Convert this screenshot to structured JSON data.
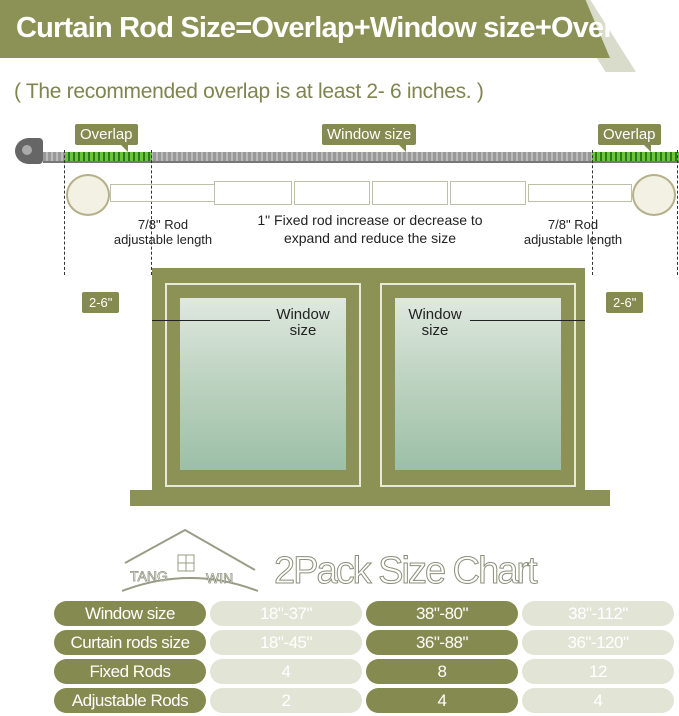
{
  "title": "Curtain Rod Size=Overlap+Window size+Overlap",
  "subtitle": "( The recommended overlap is at least 2- 6 inches. )",
  "diagram": {
    "overlap_left": "Overlap",
    "window_size": "Window size",
    "overlap_right": "Overlap",
    "adjustable_left": [
      "7/8\" Rod",
      "adjustable length"
    ],
    "fixed_rod": [
      "1\" Fixed rod  increase or decrease to",
      "expand and reduce the size"
    ],
    "adjustable_right": [
      "7/8\" Rod",
      "adjustable length"
    ],
    "side_left": "2-6\"",
    "side_right": "2-6\"",
    "window_left": [
      "Window",
      "size"
    ],
    "window_right": [
      "Window",
      "size"
    ]
  },
  "logo": {
    "text": "TANG WIN"
  },
  "chart_title": "2Pack Size Chart",
  "colors": {
    "olive": "#858a50",
    "light": "#e2e4d6"
  },
  "table": {
    "rows": [
      {
        "label": "Window size",
        "values": [
          "18\"-37\"",
          "38\"-80\"",
          "38\"-112\""
        ]
      },
      {
        "label": "Curtain rods size",
        "values": [
          "18\"-45\"",
          "36\"-88\"",
          "36\"-120\""
        ]
      },
      {
        "label": "Fixed Rods",
        "values": [
          "4",
          "8",
          "12"
        ]
      },
      {
        "label": "Adjustable Rods",
        "values": [
          "2",
          "4",
          "4"
        ]
      }
    ]
  }
}
